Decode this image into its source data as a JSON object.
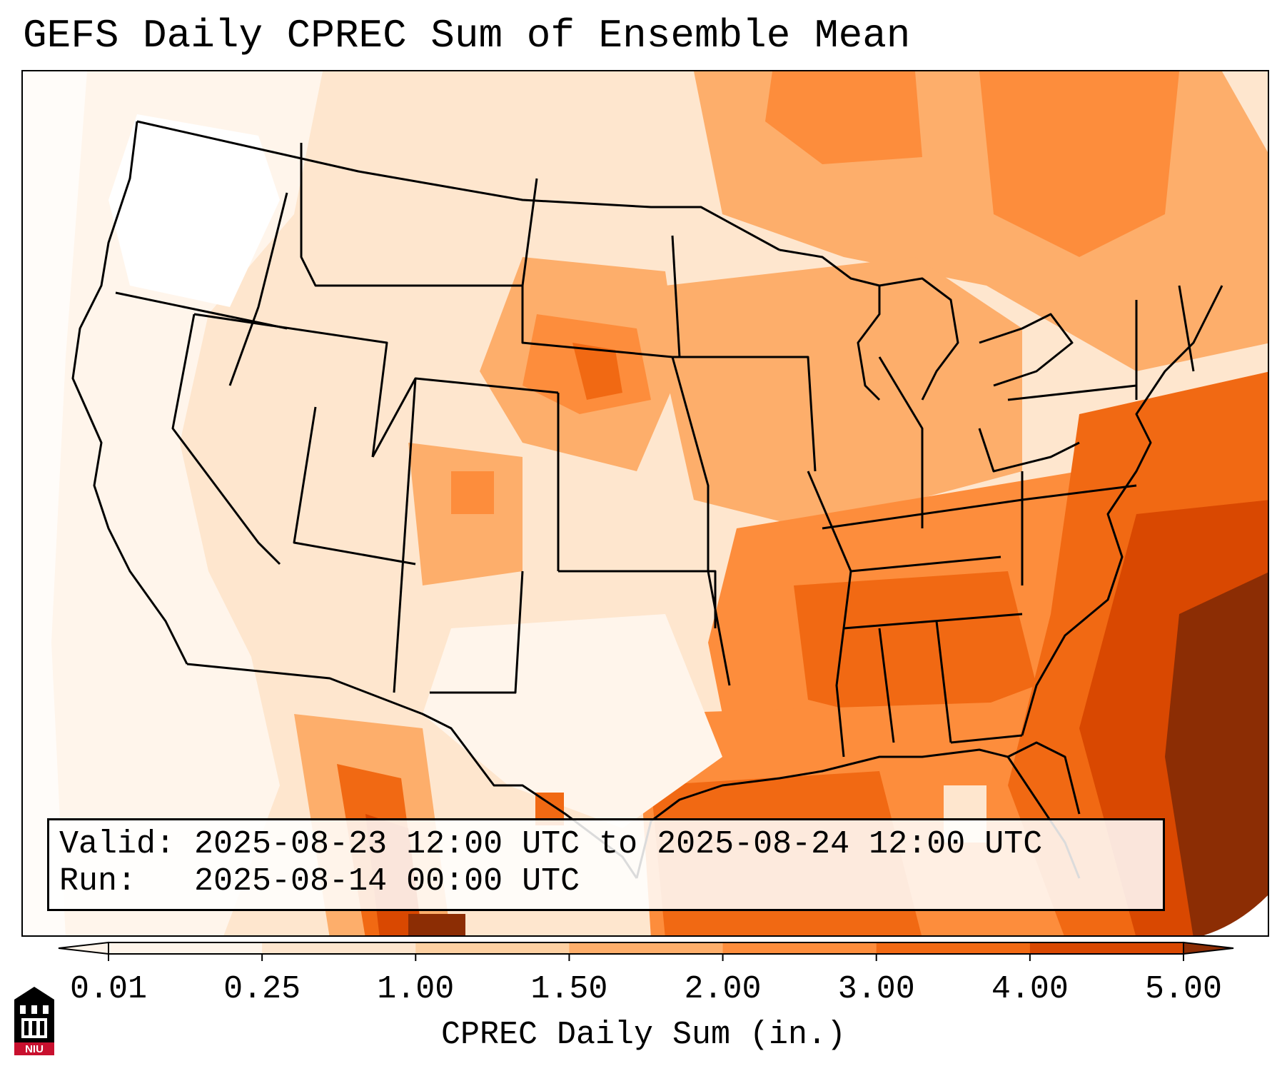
{
  "title": "GEFS Daily CPREC Sum of Ensemble Mean",
  "info": {
    "valid_line": "Valid: 2025-08-23 12:00 UTC to 2025-08-24 12:00 UTC",
    "run_line": "Run:   2025-08-14 00:00 UTC"
  },
  "colorbar": {
    "label": "CPREC Daily Sum (in.)",
    "ticks": [
      "0.01",
      "0.25",
      "1.00",
      "1.50",
      "2.00",
      "3.00",
      "4.00",
      "5.00"
    ],
    "colors": [
      "#fff5eb",
      "#fee6ce",
      "#fdd0a2",
      "#fdae6b",
      "#fd8d3c",
      "#f16913",
      "#d94801",
      "#8c2d04"
    ],
    "extend": "both"
  },
  "logo": {
    "text": "NIU",
    "colors": {
      "red": "#c8102e",
      "black": "#000000"
    }
  },
  "colors": {
    "very_light": "#fff5eb",
    "light": "#fee6ce",
    "light_orange": "#fdd0a2",
    "medium_orange": "#fdae6b",
    "orange": "#fd8d3c",
    "dark_orange": "#f16913",
    "burnt_orange": "#d94801",
    "brown": "#8c2d04"
  }
}
